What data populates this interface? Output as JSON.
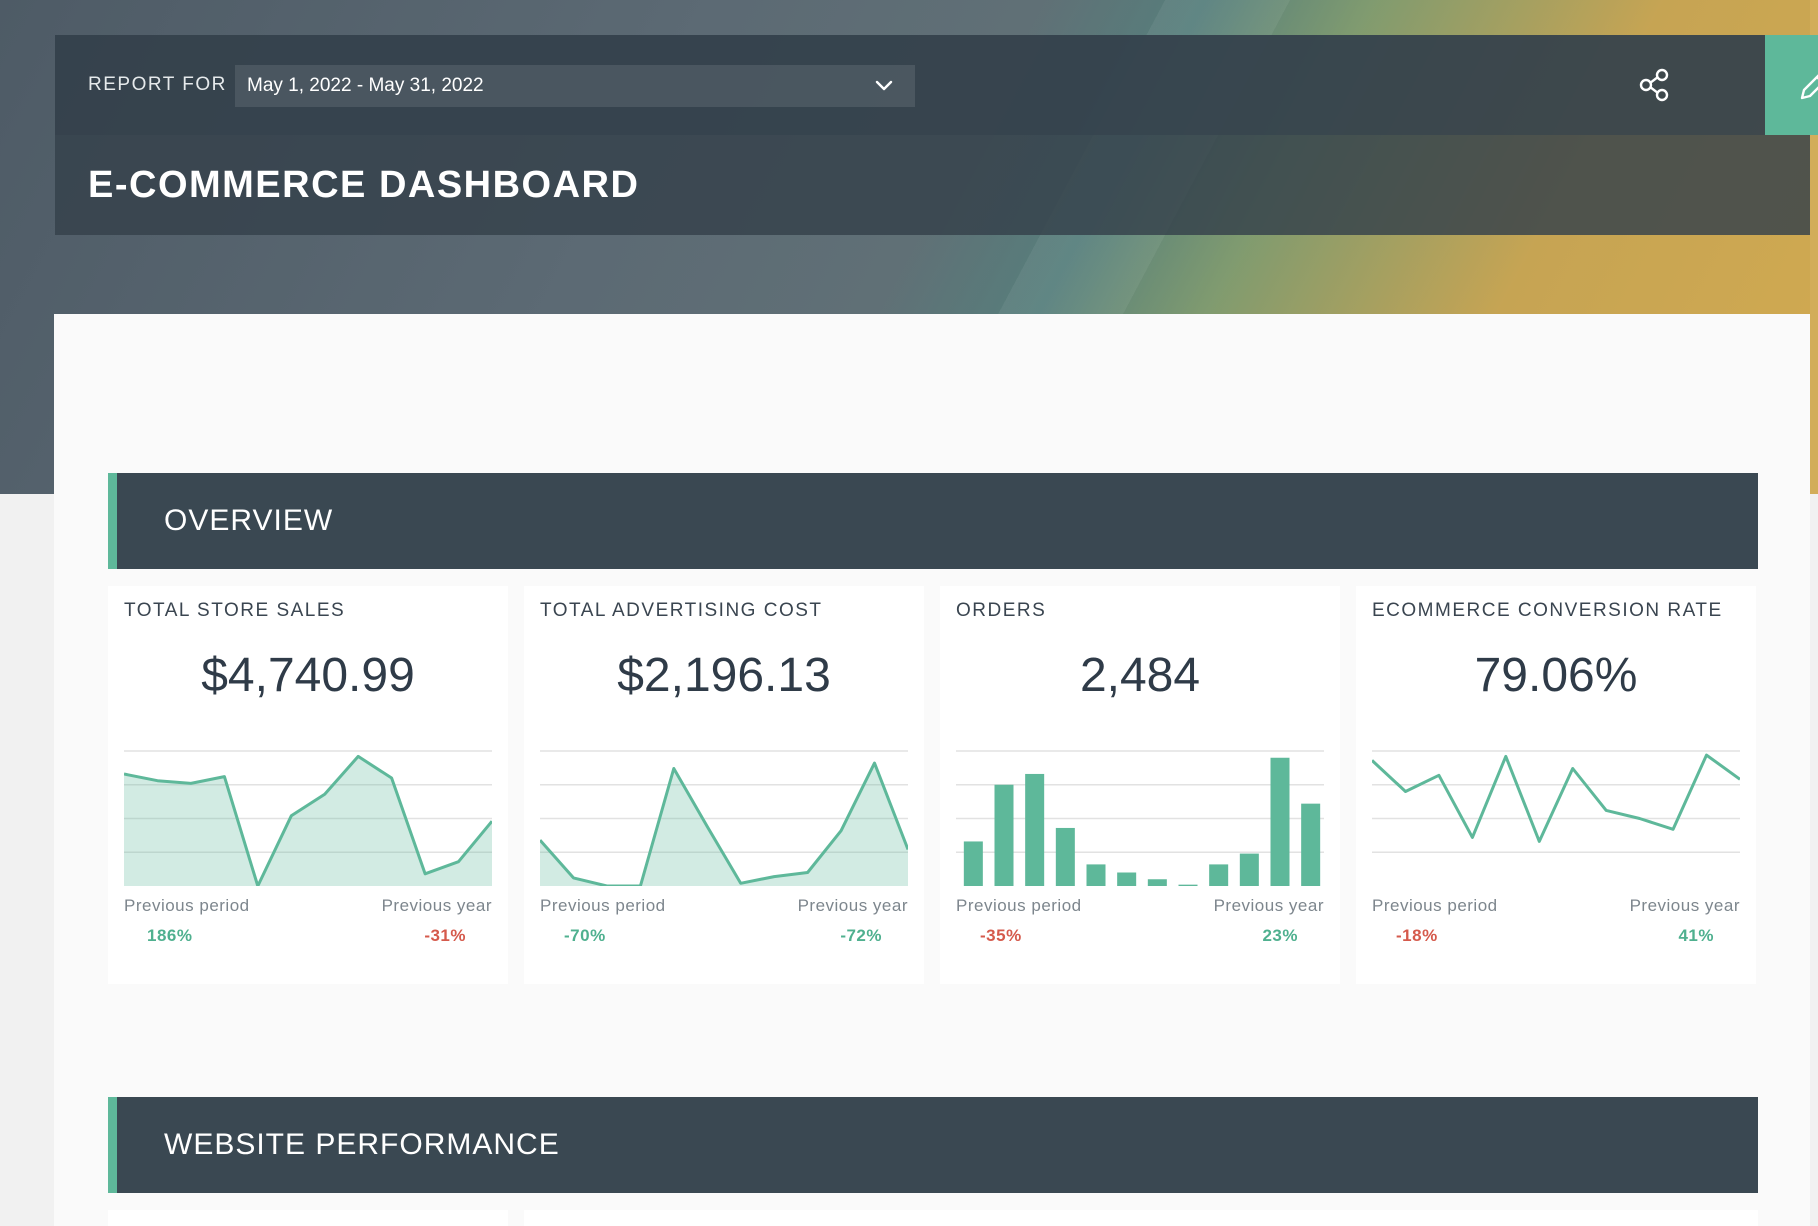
{
  "header": {
    "report_for_label": "REPORT FOR",
    "date_range": "May 1, 2022 - May 31, 2022",
    "dashboard_title": "E-COMMERCE DASHBOARD",
    "accent_color": "#5eb89a"
  },
  "sections": [
    {
      "title": "OVERVIEW"
    },
    {
      "title": "WEBSITE PERFORMANCE"
    }
  ],
  "cards": [
    {
      "title": "TOTAL STORE SALES",
      "value": "$4,740.99",
      "chart_type": "area",
      "prev_period_label": "Previous period",
      "prev_period_value": "186%",
      "prev_year_label": "Previous year",
      "prev_year_value": "-31%"
    },
    {
      "title": "TOTAL ADVERTISING COST",
      "value": "$2,196.13",
      "chart_type": "area",
      "prev_period_label": "Previous period",
      "prev_period_value": "-70%",
      "prev_year_label": "Previous year",
      "prev_year_value": "-72%"
    },
    {
      "title": "ORDERS",
      "value": "2,484",
      "chart_type": "bar",
      "prev_period_label": "Previous period",
      "prev_period_value": "-35%",
      "prev_year_label": "Previous year",
      "prev_year_value": "23%"
    },
    {
      "title": "ECOMMERCE CONVERSION RATE",
      "value": "79.06%",
      "chart_type": "line",
      "prev_period_label": "Previous period",
      "prev_period_value": "-18%",
      "prev_year_label": "Previous year",
      "prev_year_value": "41%"
    }
  ],
  "chart_data": [
    {
      "type": "area",
      "values": [
        0.83,
        0.78,
        0.76,
        0.81,
        0.0,
        0.52,
        0.68,
        0.96,
        0.8,
        0.09,
        0.18,
        0.48
      ],
      "ylim": [
        0,
        1
      ]
    },
    {
      "type": "area",
      "values": [
        0.34,
        0.06,
        0.0,
        0.0,
        0.87,
        0.44,
        0.02,
        0.07,
        0.1,
        0.41,
        0.91,
        0.27
      ],
      "ylim": [
        0,
        1
      ]
    },
    {
      "type": "bar",
      "values": [
        0.33,
        0.75,
        0.83,
        0.43,
        0.16,
        0.1,
        0.05,
        0.01,
        0.16,
        0.24,
        0.95,
        0.61
      ],
      "ylim": [
        0,
        1
      ]
    },
    {
      "type": "line",
      "values": [
        0.93,
        0.7,
        0.82,
        0.36,
        0.96,
        0.33,
        0.87,
        0.56,
        0.5,
        0.42,
        0.97,
        0.79
      ],
      "ylim": [
        0,
        1
      ]
    }
  ]
}
